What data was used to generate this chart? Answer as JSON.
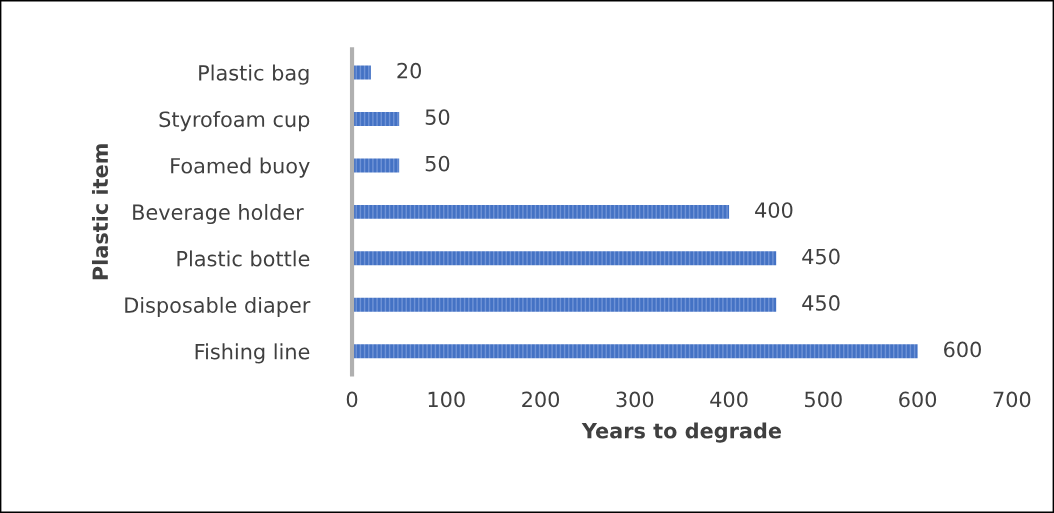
{
  "chart_data": {
    "type": "bar",
    "orientation": "horizontal",
    "xlabel": "Years to degrade",
    "ylabel": "Plastic item",
    "categories": [
      "Plastic bag",
      "Styrofoam cup",
      "Foamed buoy",
      "Beverage holder ",
      "Plastic bottle",
      "Disposable diaper",
      "Fishing line"
    ],
    "values": [
      20,
      50,
      50,
      400,
      450,
      450,
      600
    ],
    "color": "#4472c4",
    "xlim": [
      0,
      700
    ],
    "xticks": [
      0,
      100,
      200,
      300,
      400,
      500,
      600,
      700
    ],
    "grid": false,
    "data_labels": true
  }
}
